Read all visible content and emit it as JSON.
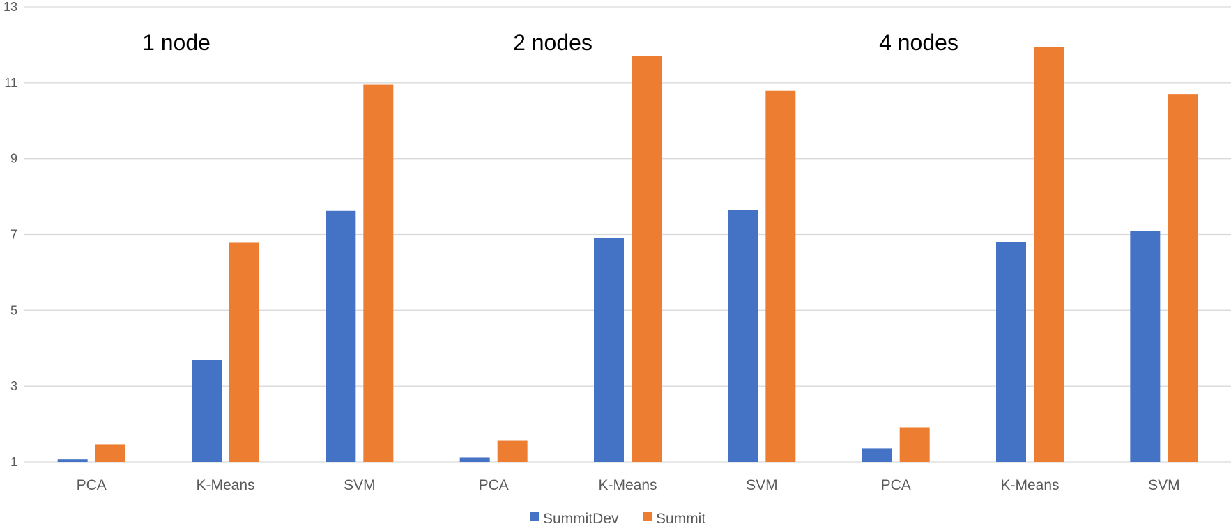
{
  "chart_data": {
    "type": "bar",
    "title": "",
    "xlabel": "",
    "ylabel": "",
    "ylim": [
      1,
      13
    ],
    "yticks": [
      1,
      3,
      5,
      7,
      9,
      11,
      13
    ],
    "grid": true,
    "legend_position": "bottom",
    "groups": [
      "1 node",
      "2 nodes",
      "4 nodes"
    ],
    "categories": [
      "PCA",
      "K-Means",
      "SVM",
      "PCA",
      "K-Means",
      "SVM",
      "PCA",
      "K-Means",
      "SVM"
    ],
    "series": [
      {
        "name": "SummitDev",
        "color": "#4472c4",
        "values": [
          1.07,
          3.7,
          7.62,
          1.12,
          6.9,
          7.65,
          1.36,
          6.8,
          7.1
        ]
      },
      {
        "name": "Summit",
        "color": "#ed7d31",
        "values": [
          1.47,
          6.78,
          10.95,
          1.56,
          11.7,
          10.8,
          1.91,
          11.95,
          10.7
        ]
      }
    ]
  }
}
